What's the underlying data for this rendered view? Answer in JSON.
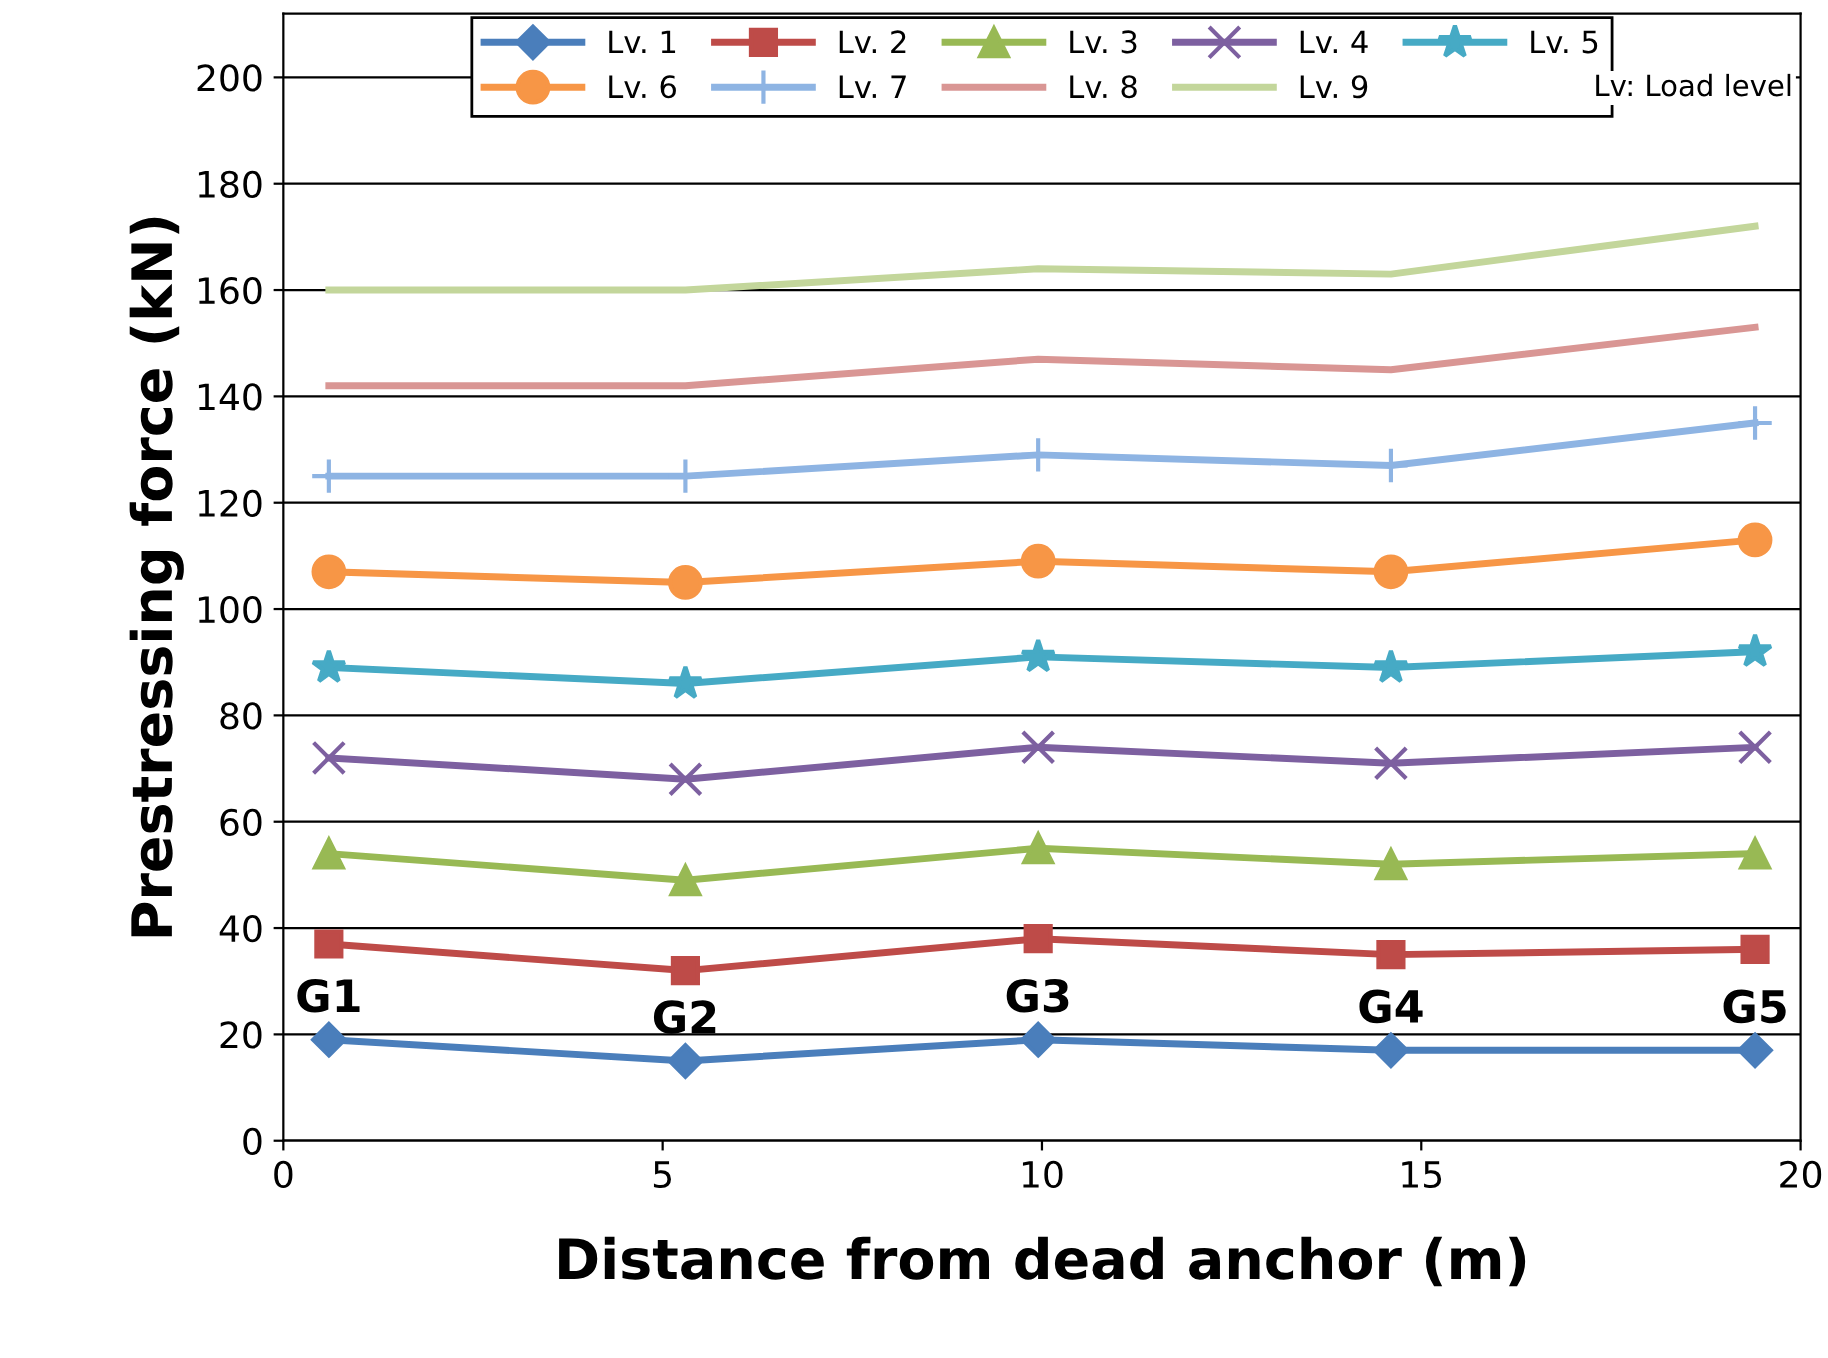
{
  "chart_data": {
    "type": "line",
    "xlabel": "Distance from dead anchor (m)",
    "ylabel": "Prestressing force (kN)",
    "x": [
      0.6,
      5.3,
      9.95,
      14.6,
      19.4
    ],
    "series": [
      {
        "name": "Lv. 1",
        "color": "#4a7ebb",
        "marker": "diamond",
        "values": [
          19,
          15,
          19,
          17,
          17
        ]
      },
      {
        "name": "Lv. 2",
        "color": "#be4b48",
        "marker": "square",
        "values": [
          37,
          32,
          38,
          35,
          36
        ]
      },
      {
        "name": "Lv. 3",
        "color": "#98b954",
        "marker": "triangle",
        "values": [
          54,
          49,
          55,
          52,
          54
        ]
      },
      {
        "name": "Lv. 4",
        "color": "#7d60a0",
        "marker": "cross",
        "values": [
          72,
          68,
          74,
          71,
          74
        ]
      },
      {
        "name": "Lv. 5",
        "color": "#46aac5",
        "marker": "star",
        "values": [
          89,
          86,
          91,
          89,
          92
        ]
      },
      {
        "name": "Lv. 6",
        "color": "#f79646",
        "marker": "circle",
        "values": [
          107,
          105,
          109,
          107,
          113
        ]
      },
      {
        "name": "Lv. 7",
        "color": "#8eb4e3",
        "marker": "plus",
        "values": [
          125,
          125,
          129,
          127,
          135
        ]
      },
      {
        "name": "Lv. 8",
        "color": "#d99694",
        "marker": "none",
        "values": [
          142,
          142,
          147,
          145,
          153
        ]
      },
      {
        "name": "Lv. 9",
        "color": "#c3d69b",
        "marker": "none",
        "values": [
          160,
          160,
          164,
          163,
          172
        ]
      }
    ],
    "xlim": [
      0,
      20
    ],
    "xticks": [
      0,
      5,
      10,
      15,
      20
    ],
    "ylim": [
      0,
      212
    ],
    "yticks": [
      0,
      20,
      40,
      60,
      80,
      100,
      120,
      140,
      160,
      180,
      200
    ],
    "grid": "y",
    "legend": "top",
    "line_style": "solid",
    "annotations": [
      {
        "text": "G1",
        "x": 0.6,
        "y": 19
      },
      {
        "text": "G2",
        "x": 5.3,
        "y": 15
      },
      {
        "text": "G3",
        "x": 9.95,
        "y": 19
      },
      {
        "text": "G4",
        "x": 14.6,
        "y": 17
      },
      {
        "text": "G5",
        "x": 19.4,
        "y": 17
      },
      "Lv: Load level"
    ]
  }
}
